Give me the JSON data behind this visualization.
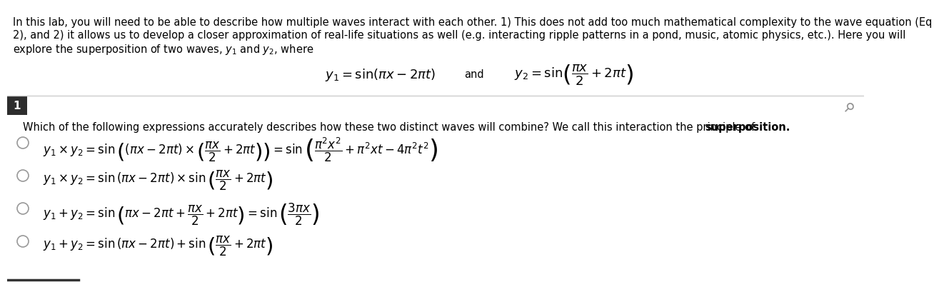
{
  "bg_color": "#ffffff",
  "intro_line1": "In this lab, you will need to be able to describe how multiple waves interact with each other. 1) This does not add too much mathematical complexity to the wave equation (Eq",
  "intro_line2": "2), and 2) it allows us to develop a closer approximation of real-life situations as well (e.g. interacting ripple patterns in a pond, music, atomic physics, etc.). Here you will",
  "intro_line3": "explore the superposition of two waves, $y_1$ and $y_2$, where",
  "question_label": "1",
  "label_box_color": "#2d2d2d",
  "label_text_color": "#ffffff",
  "separator_color": "#cccccc",
  "text_color": "#000000",
  "font_size_intro": 10.5,
  "font_size_eq": 13,
  "font_size_question": 10.5,
  "font_size_options": 12
}
